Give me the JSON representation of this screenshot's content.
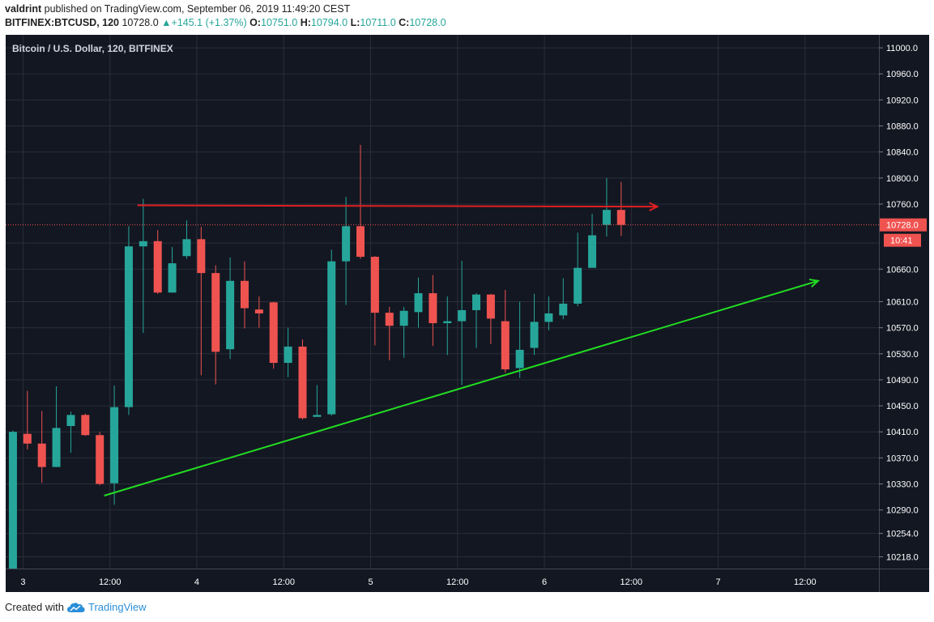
{
  "header": {
    "author": "valdrint",
    "published_text": "published on TradingView.com, September 06, 2019 11:49:20 CEST",
    "symbol": "BITFINEX:BTCUSD, 120",
    "last": "10728.0",
    "change": "+145.1 (+1.37%)",
    "o_label": "O:",
    "o_value": "10751.0",
    "h_label": "H:",
    "h_value": "10794.0",
    "l_label": "L:",
    "l_value": "10711.0",
    "c_label": "C:",
    "c_value": "10728.0"
  },
  "footer": {
    "created_with": "Created with",
    "brand": "TradingView"
  },
  "colors": {
    "background": "#131722",
    "grid": "#2a2e39",
    "up": "#26a69a",
    "down": "#ef5350",
    "resistance": "#e02020",
    "support": "#22dd22",
    "axis_text": "#ffffff"
  },
  "chart_data": {
    "type": "candlestick",
    "title": "Bitcoin / U.S. Dollar, 120, BITFINEX",
    "x_labels": [
      {
        "t": 0.7,
        "label": "3"
      },
      {
        "t": 6.7,
        "label": "12:00"
      },
      {
        "t": 12.7,
        "label": "4"
      },
      {
        "t": 18.7,
        "label": "12:00"
      },
      {
        "t": 24.7,
        "label": "5"
      },
      {
        "t": 30.7,
        "label": "12:00"
      },
      {
        "t": 36.7,
        "label": "6"
      },
      {
        "t": 42.7,
        "label": "12:00"
      },
      {
        "t": 48.7,
        "label": "7"
      },
      {
        "t": 54.7,
        "label": "12:00"
      }
    ],
    "y_ticks": [
      10218,
      10254,
      10290,
      10330,
      10370,
      10410,
      10450,
      10490,
      10530,
      10570,
      10610,
      10660,
      10700,
      10760,
      10800,
      10840,
      10880,
      10920,
      10960,
      11000
    ],
    "y_tick_labels": [
      "10218.0",
      "10254.0",
      "10290.0",
      "10330.0",
      "10370.0",
      "10410.0",
      "10450.0",
      "10490.0",
      "10530.0",
      "10570.0",
      "10610.0",
      "10660.0",
      "",
      "10760.0",
      "10800.0",
      "10840.0",
      "10880.0",
      "10920.0",
      "10960.0",
      "11000.0"
    ],
    "ylim": [
      10200,
      11020
    ],
    "xlim": [
      -0.5,
      59.8
    ],
    "last_price": 10728,
    "last_price_label": "10728.0",
    "countdown_label": "10:41",
    "candles": [
      {
        "o": 10200,
        "h": 10412,
        "l": 10200,
        "c": 10410
      },
      {
        "o": 10407,
        "h": 10473,
        "l": 10383,
        "c": 10392
      },
      {
        "o": 10392,
        "h": 10442,
        "l": 10332,
        "c": 10356
      },
      {
        "o": 10356,
        "h": 10480,
        "l": 10356,
        "c": 10416
      },
      {
        "o": 10419,
        "h": 10441,
        "l": 10378,
        "c": 10436
      },
      {
        "o": 10436,
        "h": 10438,
        "l": 10404,
        "c": 10405
      },
      {
        "o": 10405,
        "h": 10410,
        "l": 10328,
        "c": 10330
      },
      {
        "o": 10331,
        "h": 10481,
        "l": 10298,
        "c": 10448
      },
      {
        "o": 10448,
        "h": 10726,
        "l": 10436,
        "c": 10695
      },
      {
        "o": 10695,
        "h": 10768,
        "l": 10562,
        "c": 10703
      },
      {
        "o": 10703,
        "h": 10720,
        "l": 10622,
        "c": 10624
      },
      {
        "o": 10624,
        "h": 10694,
        "l": 10624,
        "c": 10669
      },
      {
        "o": 10680,
        "h": 10735,
        "l": 10676,
        "c": 10706
      },
      {
        "o": 10706,
        "h": 10725,
        "l": 10497,
        "c": 10654
      },
      {
        "o": 10654,
        "h": 10666,
        "l": 10483,
        "c": 10533
      },
      {
        "o": 10537,
        "h": 10678,
        "l": 10522,
        "c": 10642
      },
      {
        "o": 10642,
        "h": 10672,
        "l": 10569,
        "c": 10600
      },
      {
        "o": 10598,
        "h": 10618,
        "l": 10570,
        "c": 10592
      },
      {
        "o": 10609,
        "h": 10610,
        "l": 10507,
        "c": 10516
      },
      {
        "o": 10516,
        "h": 10570,
        "l": 10494,
        "c": 10541
      },
      {
        "o": 10541,
        "h": 10552,
        "l": 10429,
        "c": 10431
      },
      {
        "o": 10433,
        "h": 10482,
        "l": 10434,
        "c": 10436
      },
      {
        "o": 10437,
        "h": 10690,
        "l": 10435,
        "c": 10672
      },
      {
        "o": 10672,
        "h": 10771,
        "l": 10605,
        "c": 10726
      },
      {
        "o": 10726,
        "h": 10851,
        "l": 10676,
        "c": 10679
      },
      {
        "o": 10679,
        "h": 10680,
        "l": 10543,
        "c": 10593
      },
      {
        "o": 10593,
        "h": 10602,
        "l": 10520,
        "c": 10573
      },
      {
        "o": 10573,
        "h": 10602,
        "l": 10524,
        "c": 10596
      },
      {
        "o": 10594,
        "h": 10647,
        "l": 10570,
        "c": 10623
      },
      {
        "o": 10623,
        "h": 10651,
        "l": 10542,
        "c": 10577
      },
      {
        "o": 10577,
        "h": 10618,
        "l": 10528,
        "c": 10580
      },
      {
        "o": 10580,
        "h": 10673,
        "l": 10482,
        "c": 10597
      },
      {
        "o": 10597,
        "h": 10623,
        "l": 10539,
        "c": 10621
      },
      {
        "o": 10621,
        "h": 10622,
        "l": 10545,
        "c": 10584
      },
      {
        "o": 10580,
        "h": 10628,
        "l": 10501,
        "c": 10506
      },
      {
        "o": 10508,
        "h": 10610,
        "l": 10493,
        "c": 10536
      },
      {
        "o": 10539,
        "h": 10622,
        "l": 10528,
        "c": 10579
      },
      {
        "o": 10579,
        "h": 10618,
        "l": 10566,
        "c": 10592
      },
      {
        "o": 10589,
        "h": 10646,
        "l": 10583,
        "c": 10607
      },
      {
        "o": 10607,
        "h": 10716,
        "l": 10603,
        "c": 10662
      },
      {
        "o": 10662,
        "h": 10745,
        "l": 10667,
        "c": 10712
      },
      {
        "o": 10728,
        "h": 10800,
        "l": 10710,
        "c": 10751
      },
      {
        "o": 10751,
        "h": 10794,
        "l": 10711,
        "c": 10728
      }
    ],
    "lines": [
      {
        "name": "resistance",
        "kind": "arrow",
        "t1": 8.6,
        "p1": 10758,
        "t2": 44.5,
        "p2": 10756
      },
      {
        "name": "support",
        "kind": "arrow",
        "t1": 6.3,
        "p1": 10312,
        "t2": 55.6,
        "p2": 10642
      }
    ]
  }
}
